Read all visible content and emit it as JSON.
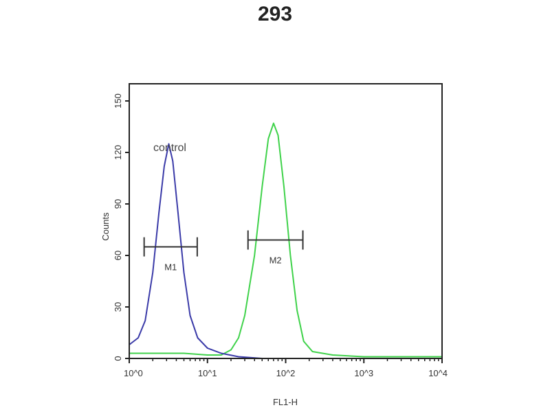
{
  "chart_data": {
    "type": "line",
    "title": "293",
    "xlabel": "FL1-H",
    "ylabel": "Counts",
    "xscale": "log",
    "xlim": [
      1,
      10000
    ],
    "ylim": [
      0,
      160
    ],
    "xticks": [
      {
        "value": 1,
        "label": "10^0"
      },
      {
        "value": 10,
        "label": "10^1"
      },
      {
        "value": 100,
        "label": "10^2"
      },
      {
        "value": 1000,
        "label": "10^3"
      },
      {
        "value": 10000,
        "label": "10^4"
      }
    ],
    "yticks": [
      0,
      30,
      60,
      90,
      120,
      150
    ],
    "grid": false,
    "annotations": [
      {
        "text": "control",
        "x": 3.3,
        "y": 140
      }
    ],
    "markers": [
      {
        "label": "M1",
        "x_start": 1.55,
        "x_end": 7.4,
        "y": 65
      },
      {
        "label": "M2",
        "x_start": 33,
        "x_end": 166,
        "y": 69
      }
    ],
    "series": [
      {
        "color": "#3a3aa8",
        "x": [
          1,
          1.3,
          1.6,
          2.0,
          2.4,
          2.8,
          3.2,
          3.6,
          4.2,
          5.0,
          6.0,
          7.5,
          10,
          15,
          25,
          50,
          100,
          1000,
          10000
        ],
        "y": [
          8,
          12,
          22,
          50,
          85,
          112,
          125,
          115,
          85,
          50,
          25,
          12,
          6,
          3,
          1,
          0,
          0,
          0,
          0
        ]
      },
      {
        "color": "#3fd24a",
        "x": [
          1,
          5,
          10,
          15,
          20,
          25,
          30,
          40,
          50,
          60,
          70,
          80,
          95,
          115,
          140,
          170,
          220,
          400,
          1000,
          10000
        ],
        "y": [
          3,
          3,
          2,
          2,
          5,
          12,
          25,
          60,
          100,
          128,
          137,
          130,
          100,
          60,
          28,
          10,
          4,
          2,
          1,
          1
        ]
      }
    ]
  }
}
